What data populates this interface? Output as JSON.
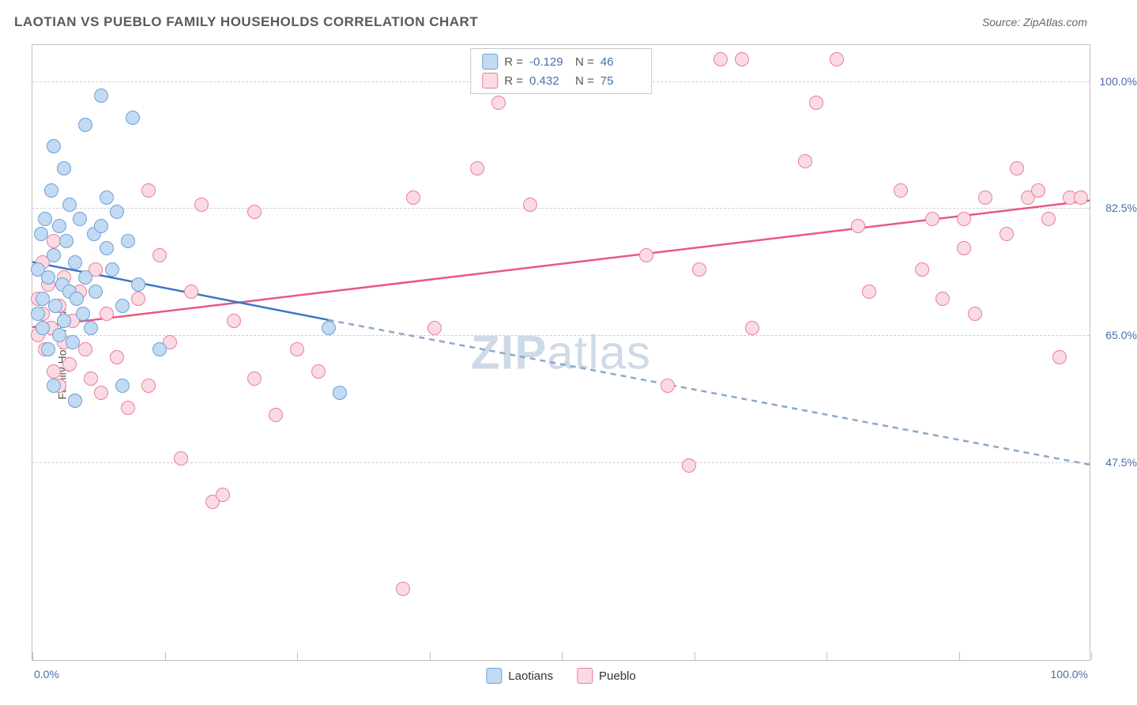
{
  "title": "LAOTIAN VS PUEBLO FAMILY HOUSEHOLDS CORRELATION CHART",
  "source_label": "Source: ZipAtlas.com",
  "watermark_prefix": "ZIP",
  "watermark_suffix": "atlas",
  "chart": {
    "type": "scatter",
    "ylabel": "Family Households",
    "xmin_label": "0.0%",
    "xmax_label": "100.0%",
    "xlim": [
      0,
      100
    ],
    "ylim": [
      20,
      105
    ],
    "yticks": [
      {
        "value": 47.5,
        "label": "47.5%"
      },
      {
        "value": 65.0,
        "label": "65.0%"
      },
      {
        "value": 82.5,
        "label": "82.5%"
      },
      {
        "value": 100.0,
        "label": "100.0%"
      }
    ],
    "xticks": [
      0,
      12.5,
      25,
      37.5,
      50,
      62.5,
      75,
      87.5,
      100
    ],
    "background_color": "#ffffff",
    "grid_color": "#d0d0d0",
    "axis_color": "#bfbfbf",
    "tick_label_color": "#4a6da8",
    "axis_label_color": "#555555",
    "marker_radius": 9,
    "marker_border_width": 1.5,
    "trend_line_width": 2.5,
    "series": {
      "laotians": {
        "label": "Laotians",
        "fill_color": "#c2daf2",
        "stroke_color": "#6aa2d8",
        "trend_color": "#3a76c2",
        "trend_dash_color": "#8ba8c8",
        "R": "-0.129",
        "N": "46",
        "trend_start": {
          "x": 0,
          "y": 75
        },
        "trend_solid_end": {
          "x": 28,
          "y": 67
        },
        "trend_dash_end": {
          "x": 100,
          "y": 47
        },
        "points": [
          {
            "x": 0.5,
            "y": 74
          },
          {
            "x": 0.5,
            "y": 68
          },
          {
            "x": 0.8,
            "y": 79
          },
          {
            "x": 1,
            "y": 70
          },
          {
            "x": 1,
            "y": 66
          },
          {
            "x": 1.2,
            "y": 81
          },
          {
            "x": 1.5,
            "y": 73
          },
          {
            "x": 1.5,
            "y": 63
          },
          {
            "x": 1.8,
            "y": 85
          },
          {
            "x": 2,
            "y": 76
          },
          {
            "x": 2,
            "y": 91
          },
          {
            "x": 2.2,
            "y": 69
          },
          {
            "x": 2.5,
            "y": 65
          },
          {
            "x": 2.5,
            "y": 80
          },
          {
            "x": 2.8,
            "y": 72
          },
          {
            "x": 3,
            "y": 88
          },
          {
            "x": 3,
            "y": 67
          },
          {
            "x": 3.2,
            "y": 78
          },
          {
            "x": 3.5,
            "y": 71
          },
          {
            "x": 3.5,
            "y": 83
          },
          {
            "x": 3.8,
            "y": 64
          },
          {
            "x": 4,
            "y": 75
          },
          {
            "x": 4.2,
            "y": 70
          },
          {
            "x": 4.5,
            "y": 81
          },
          {
            "x": 4.8,
            "y": 68
          },
          {
            "x": 5,
            "y": 94
          },
          {
            "x": 5,
            "y": 73
          },
          {
            "x": 5.5,
            "y": 66
          },
          {
            "x": 5.8,
            "y": 79
          },
          {
            "x": 6,
            "y": 71
          },
          {
            "x": 6.5,
            "y": 98
          },
          {
            "x": 6.5,
            "y": 80
          },
          {
            "x": 7,
            "y": 84
          },
          {
            "x": 7,
            "y": 77
          },
          {
            "x": 7.5,
            "y": 74
          },
          {
            "x": 8,
            "y": 82
          },
          {
            "x": 8.5,
            "y": 69
          },
          {
            "x": 9,
            "y": 78
          },
          {
            "x": 9.5,
            "y": 95
          },
          {
            "x": 10,
            "y": 72
          },
          {
            "x": 8.5,
            "y": 58
          },
          {
            "x": 12,
            "y": 63
          },
          {
            "x": 2,
            "y": 58
          },
          {
            "x": 4,
            "y": 56
          },
          {
            "x": 28,
            "y": 66
          },
          {
            "x": 29,
            "y": 57
          }
        ]
      },
      "pueblo": {
        "label": "Pueblo",
        "fill_color": "#fbdbe3",
        "stroke_color": "#ec7c9a",
        "trend_color": "#e75a82",
        "R": "0.432",
        "N": "75",
        "trend_start": {
          "x": 0,
          "y": 66
        },
        "trend_end": {
          "x": 100,
          "y": 83.5
        },
        "points": [
          {
            "x": 0.5,
            "y": 65
          },
          {
            "x": 0.5,
            "y": 70
          },
          {
            "x": 1,
            "y": 68
          },
          {
            "x": 1,
            "y": 75
          },
          {
            "x": 1.2,
            "y": 63
          },
          {
            "x": 1.5,
            "y": 72
          },
          {
            "x": 1.8,
            "y": 66
          },
          {
            "x": 2,
            "y": 60
          },
          {
            "x": 2,
            "y": 78
          },
          {
            "x": 2.5,
            "y": 58
          },
          {
            "x": 2.5,
            "y": 69
          },
          {
            "x": 3,
            "y": 64
          },
          {
            "x": 3,
            "y": 73
          },
          {
            "x": 3.5,
            "y": 61
          },
          {
            "x": 3.8,
            "y": 67
          },
          {
            "x": 4,
            "y": 56
          },
          {
            "x": 4.5,
            "y": 71
          },
          {
            "x": 5,
            "y": 63
          },
          {
            "x": 5.5,
            "y": 59
          },
          {
            "x": 6,
            "y": 74
          },
          {
            "x": 6.5,
            "y": 57
          },
          {
            "x": 7,
            "y": 68
          },
          {
            "x": 8,
            "y": 62
          },
          {
            "x": 9,
            "y": 55
          },
          {
            "x": 10,
            "y": 70
          },
          {
            "x": 11,
            "y": 58
          },
          {
            "x": 11,
            "y": 85
          },
          {
            "x": 12,
            "y": 76
          },
          {
            "x": 13,
            "y": 64
          },
          {
            "x": 14,
            "y": 48
          },
          {
            "x": 15,
            "y": 71
          },
          {
            "x": 16,
            "y": 83
          },
          {
            "x": 17,
            "y": 42
          },
          {
            "x": 18,
            "y": 43
          },
          {
            "x": 19,
            "y": 67
          },
          {
            "x": 21,
            "y": 59
          },
          {
            "x": 21,
            "y": 82
          },
          {
            "x": 23,
            "y": 54
          },
          {
            "x": 25,
            "y": 63
          },
          {
            "x": 27,
            "y": 60
          },
          {
            "x": 35,
            "y": 30
          },
          {
            "x": 36,
            "y": 84
          },
          {
            "x": 38,
            "y": 66
          },
          {
            "x": 42,
            "y": 88
          },
          {
            "x": 44,
            "y": 97
          },
          {
            "x": 47,
            "y": 83
          },
          {
            "x": 55,
            "y": 103
          },
          {
            "x": 58,
            "y": 76
          },
          {
            "x": 60,
            "y": 58
          },
          {
            "x": 62,
            "y": 47
          },
          {
            "x": 63,
            "y": 74
          },
          {
            "x": 65,
            "y": 103
          },
          {
            "x": 67,
            "y": 103
          },
          {
            "x": 68,
            "y": 66
          },
          {
            "x": 73,
            "y": 89
          },
          {
            "x": 74,
            "y": 97
          },
          {
            "x": 76,
            "y": 103
          },
          {
            "x": 78,
            "y": 80
          },
          {
            "x": 79,
            "y": 71
          },
          {
            "x": 82,
            "y": 85
          },
          {
            "x": 84,
            "y": 74
          },
          {
            "x": 85,
            "y": 81
          },
          {
            "x": 86,
            "y": 70
          },
          {
            "x": 88,
            "y": 77
          },
          {
            "x": 88,
            "y": 81
          },
          {
            "x": 89,
            "y": 68
          },
          {
            "x": 90,
            "y": 84
          },
          {
            "x": 92,
            "y": 79
          },
          {
            "x": 93,
            "y": 88
          },
          {
            "x": 94,
            "y": 84
          },
          {
            "x": 95,
            "y": 85
          },
          {
            "x": 96,
            "y": 81
          },
          {
            "x": 97,
            "y": 62
          },
          {
            "x": 98,
            "y": 84
          },
          {
            "x": 99,
            "y": 84
          }
        ]
      }
    }
  },
  "legend_top": {
    "r_label": "R =",
    "n_label": "N ="
  }
}
